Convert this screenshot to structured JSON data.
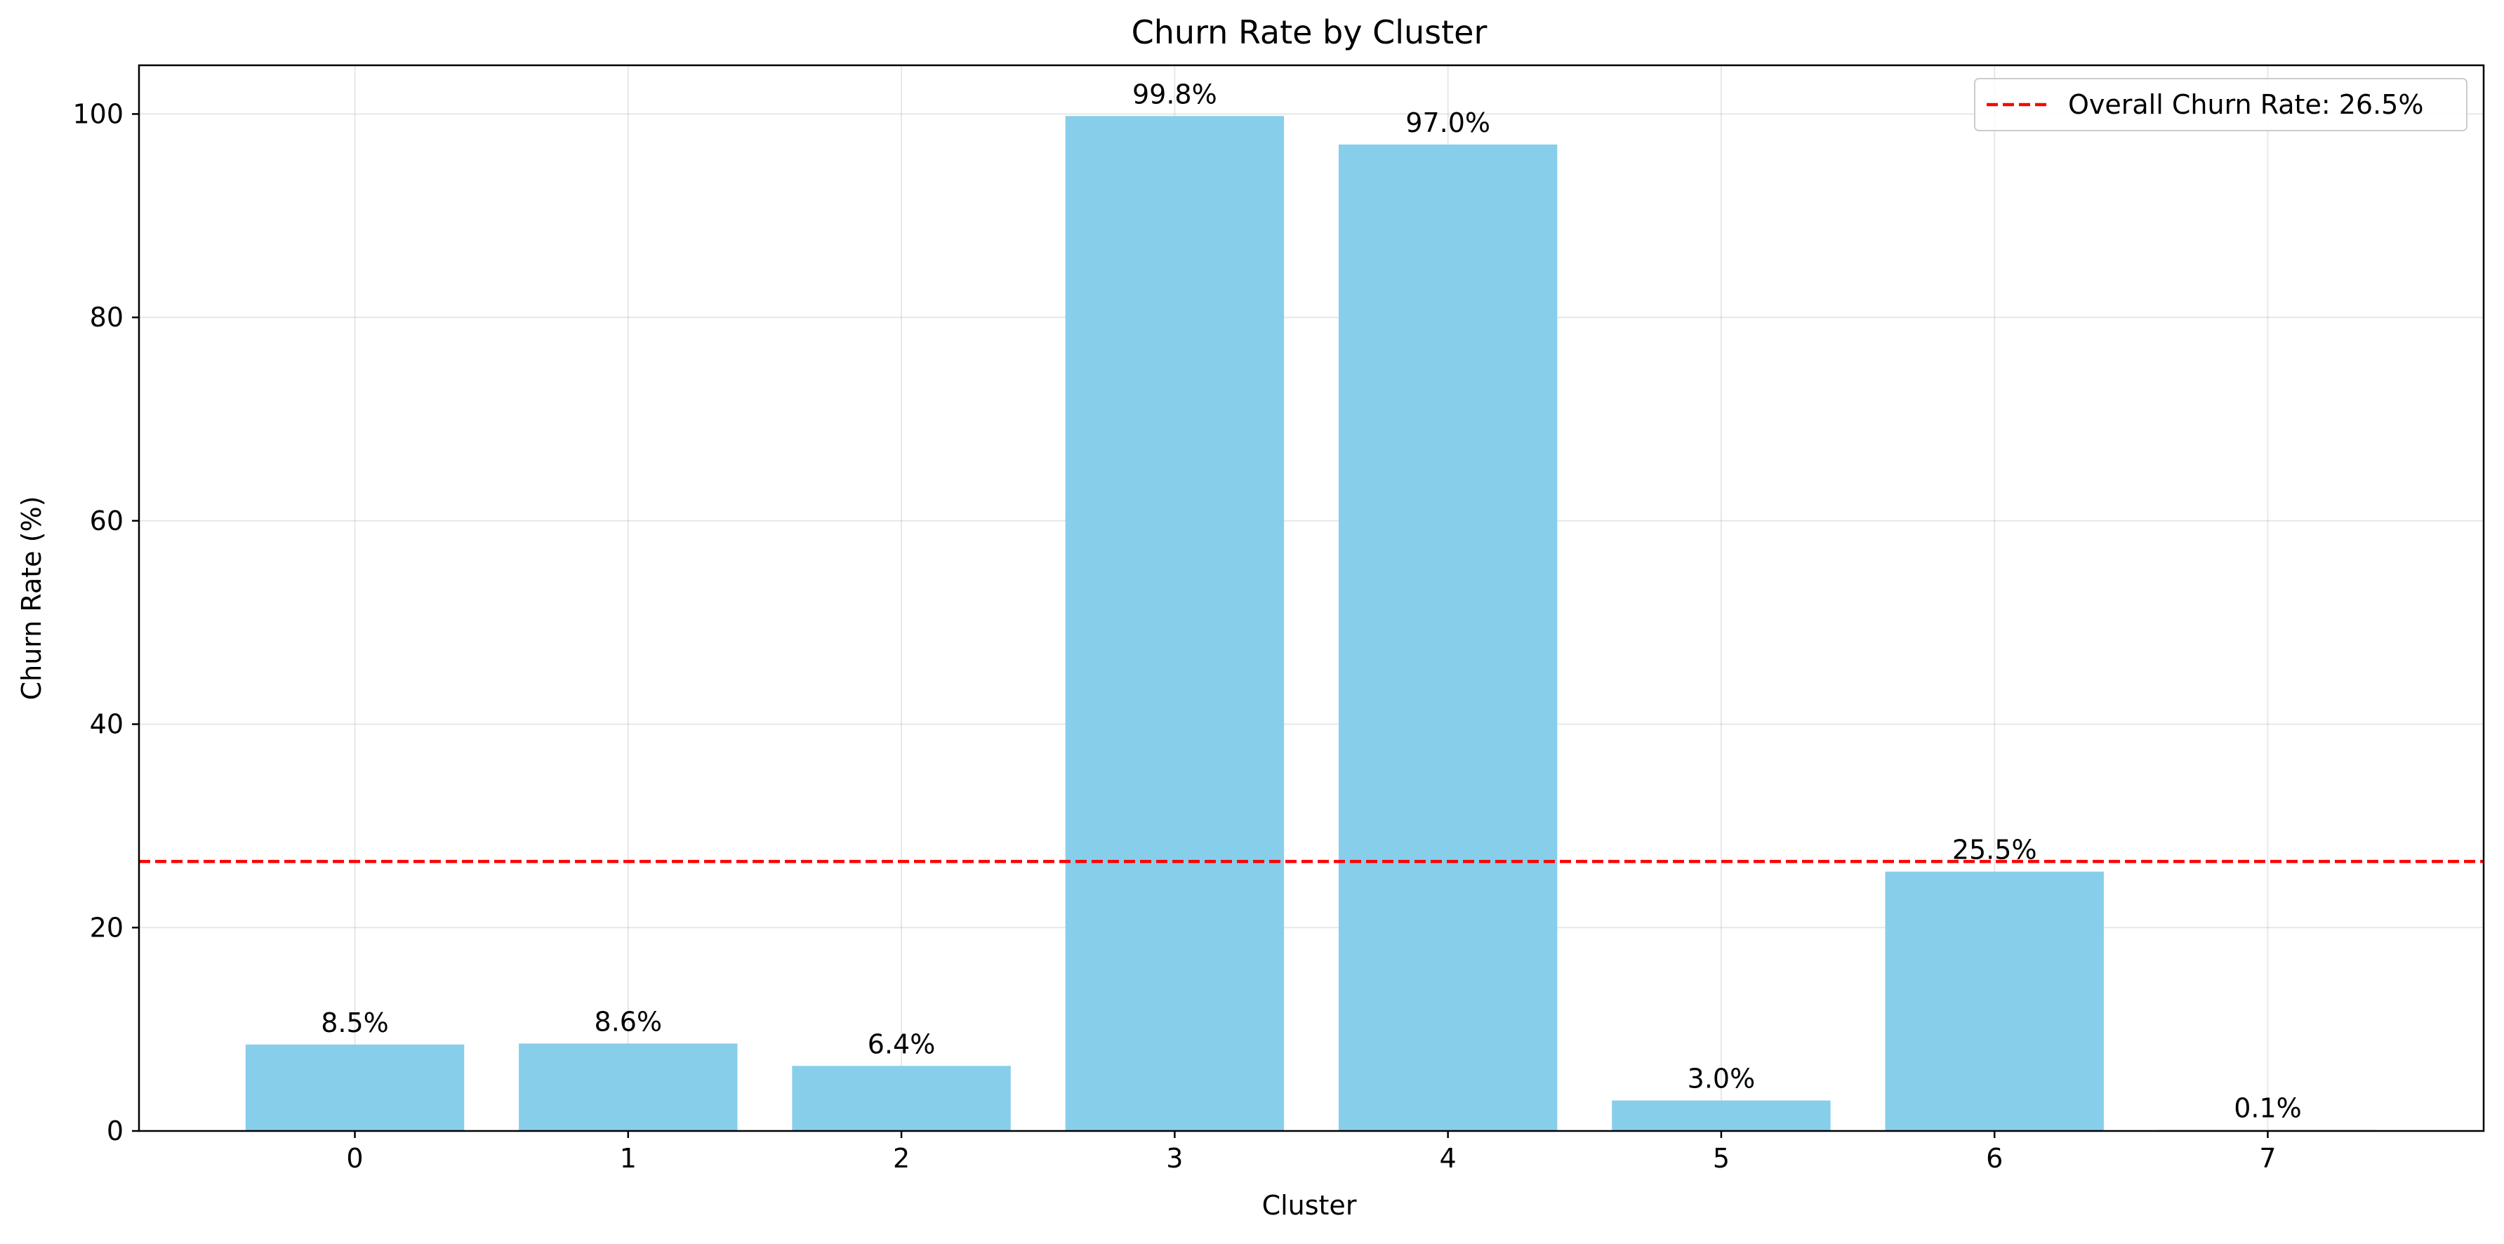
{
  "chart_data": {
    "type": "bar",
    "title": "Churn Rate by Cluster",
    "xlabel": "Cluster",
    "ylabel": "Churn Rate (%)",
    "categories": [
      "0",
      "1",
      "2",
      "3",
      "4",
      "5",
      "6",
      "7"
    ],
    "values": [
      8.5,
      8.6,
      6.4,
      99.8,
      97.0,
      3.0,
      25.5,
      0.1
    ],
    "data_labels": [
      "8.5%",
      "8.6%",
      "6.4%",
      "99.8%",
      "97.0%",
      "3.0%",
      "25.5%",
      "0.1%"
    ],
    "y_ticks": [
      0,
      20,
      40,
      60,
      80,
      100
    ],
    "ylim": [
      0,
      104.79
    ],
    "grid": true,
    "legend_position": "top-right",
    "reference_line": {
      "value": 26.5,
      "label": "Overall Churn Rate: 26.5%",
      "style": "dashed",
      "color": "#ff0000"
    },
    "bar_color": "#87ceeb"
  }
}
